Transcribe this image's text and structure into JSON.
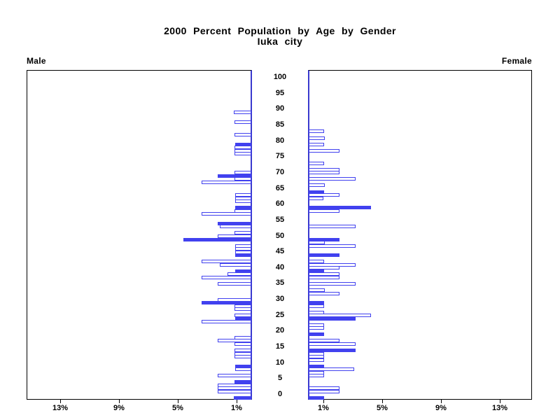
{
  "title": {
    "line1": "2000 Percent Population by Age by Gender",
    "line2": "Iuka city"
  },
  "axis_titles": {
    "male": "Male",
    "female": "Female"
  },
  "colors": {
    "bar_blue": "#4141ef",
    "spine_blue": "#3a3ace",
    "axis_black": "#000000",
    "background": "#ffffff"
  },
  "chart_data": {
    "type": "bar",
    "subtype": "population-pyramid",
    "title": "2000 Percent Population by Age by Gender",
    "subtitle": "Iuka city",
    "age_axis": {
      "label_ticks": [
        0,
        5,
        10,
        15,
        20,
        25,
        30,
        35,
        40,
        45,
        50,
        55,
        60,
        65,
        70,
        75,
        80,
        85,
        90,
        95,
        100
      ],
      "range": [
        0,
        100
      ]
    },
    "percent_axis": {
      "male_tick_labels": [
        "13%",
        "9%",
        "5%",
        "1%"
      ],
      "male_tick_values": [
        13,
        9,
        5,
        1
      ],
      "female_tick_labels": [
        "1%",
        "5%",
        "9%",
        "13%"
      ],
      "female_tick_values": [
        1,
        5,
        9,
        13
      ],
      "range": [
        0,
        15
      ],
      "unit": "percent of population"
    },
    "legend": {
      "solid_bar_meaning": "highlighted age bar (solid blue)",
      "outlined_bar_meaning": "age bar (white with blue outline)"
    },
    "series": [
      {
        "name": "Male",
        "bars": [
          {
            "age": 90,
            "pct": 1.2,
            "solid": false
          },
          {
            "age": 87,
            "pct": 1.15,
            "solid": false
          },
          {
            "age": 83,
            "pct": 1.15,
            "solid": false
          },
          {
            "age": 80,
            "pct": 1.1,
            "solid": true
          },
          {
            "age": 79,
            "pct": 1.15,
            "solid": false
          },
          {
            "age": 78,
            "pct": 1.15,
            "solid": false
          },
          {
            "age": 77,
            "pct": 1.15,
            "solid": false
          },
          {
            "age": 71,
            "pct": 1.15,
            "solid": false
          },
          {
            "age": 70,
            "pct": 2.3,
            "solid": true
          },
          {
            "age": 69,
            "pct": 1.15,
            "solid": false
          },
          {
            "age": 68,
            "pct": 3.4,
            "solid": false
          },
          {
            "age": 64,
            "pct": 1.1,
            "solid": false
          },
          {
            "age": 63,
            "pct": 1.1,
            "solid": false
          },
          {
            "age": 62,
            "pct": 1.1,
            "solid": false
          },
          {
            "age": 60,
            "pct": 1.1,
            "solid": true
          },
          {
            "age": 59,
            "pct": 1.15,
            "solid": false
          },
          {
            "age": 58,
            "pct": 3.4,
            "solid": false
          },
          {
            "age": 55,
            "pct": 2.3,
            "solid": true
          },
          {
            "age": 54,
            "pct": 2.15,
            "solid": false
          },
          {
            "age": 52,
            "pct": 1.15,
            "solid": false
          },
          {
            "age": 51,
            "pct": 2.3,
            "solid": false
          },
          {
            "age": 50,
            "pct": 4.6,
            "solid": true
          },
          {
            "age": 48,
            "pct": 1.1,
            "solid": false
          },
          {
            "age": 47,
            "pct": 1.1,
            "solid": false
          },
          {
            "age": 46,
            "pct": 1.1,
            "solid": false
          },
          {
            "age": 45,
            "pct": 1.1,
            "solid": true
          },
          {
            "age": 43,
            "pct": 3.4,
            "solid": false
          },
          {
            "age": 42,
            "pct": 2.15,
            "solid": false
          },
          {
            "age": 40,
            "pct": 1.1,
            "solid": true
          },
          {
            "age": 39,
            "pct": 1.6,
            "solid": false
          },
          {
            "age": 38,
            "pct": 3.4,
            "solid": false
          },
          {
            "age": 36,
            "pct": 2.3,
            "solid": false
          },
          {
            "age": 31,
            "pct": 2.3,
            "solid": false
          },
          {
            "age": 30,
            "pct": 3.4,
            "solid": true
          },
          {
            "age": 29,
            "pct": 1.15,
            "solid": false
          },
          {
            "age": 28,
            "pct": 1.15,
            "solid": false
          },
          {
            "age": 26,
            "pct": 1.15,
            "solid": false
          },
          {
            "age": 25,
            "pct": 1.1,
            "solid": true
          },
          {
            "age": 24,
            "pct": 3.4,
            "solid": false
          },
          {
            "age": 19,
            "pct": 1.15,
            "solid": false
          },
          {
            "age": 18,
            "pct": 2.3,
            "solid": false
          },
          {
            "age": 17,
            "pct": 1.15,
            "solid": false
          },
          {
            "age": 15,
            "pct": 1.15,
            "solid": false
          },
          {
            "age": 14,
            "pct": 1.15,
            "solid": false
          },
          {
            "age": 13,
            "pct": 1.15,
            "solid": false
          },
          {
            "age": 10,
            "pct": 1.1,
            "solid": true
          },
          {
            "age": 9,
            "pct": 1.1,
            "solid": false
          },
          {
            "age": 7,
            "pct": 2.3,
            "solid": false
          },
          {
            "age": 5,
            "pct": 1.15,
            "solid": true
          },
          {
            "age": 4,
            "pct": 2.3,
            "solid": false
          },
          {
            "age": 3,
            "pct": 2.3,
            "solid": false
          },
          {
            "age": 2,
            "pct": 2.3,
            "solid": false
          },
          {
            "age": 0,
            "pct": 1.2,
            "solid": true
          }
        ]
      },
      {
        "name": "Female",
        "bars": [
          {
            "age": 84,
            "pct": 1.05,
            "solid": false
          },
          {
            "age": 82,
            "pct": 1.1,
            "solid": false
          },
          {
            "age": 80,
            "pct": 1.05,
            "solid": false
          },
          {
            "age": 78,
            "pct": 2.1,
            "solid": false
          },
          {
            "age": 74,
            "pct": 1.05,
            "solid": false
          },
          {
            "age": 72,
            "pct": 2.1,
            "solid": false
          },
          {
            "age": 71,
            "pct": 2.1,
            "solid": false
          },
          {
            "age": 69,
            "pct": 3.2,
            "solid": false
          },
          {
            "age": 67,
            "pct": 1.1,
            "solid": false
          },
          {
            "age": 65,
            "pct": 1.05,
            "solid": true
          },
          {
            "age": 64,
            "pct": 2.1,
            "solid": false
          },
          {
            "age": 63,
            "pct": 1.0,
            "solid": false
          },
          {
            "age": 60,
            "pct": 4.25,
            "solid": true
          },
          {
            "age": 59,
            "pct": 2.1,
            "solid": false
          },
          {
            "age": 54,
            "pct": 3.2,
            "solid": false
          },
          {
            "age": 50,
            "pct": 2.1,
            "solid": true
          },
          {
            "age": 49,
            "pct": 1.1,
            "solid": false
          },
          {
            "age": 48,
            "pct": 3.2,
            "solid": false
          },
          {
            "age": 45,
            "pct": 2.1,
            "solid": true
          },
          {
            "age": 43,
            "pct": 1.05,
            "solid": false
          },
          {
            "age": 42,
            "pct": 3.2,
            "solid": false
          },
          {
            "age": 41,
            "pct": 2.1,
            "solid": false
          },
          {
            "age": 40,
            "pct": 1.05,
            "solid": true
          },
          {
            "age": 39,
            "pct": 2.1,
            "solid": false
          },
          {
            "age": 38,
            "pct": 2.1,
            "solid": false
          },
          {
            "age": 36,
            "pct": 3.2,
            "solid": false
          },
          {
            "age": 34,
            "pct": 1.1,
            "solid": false
          },
          {
            "age": 33,
            "pct": 2.1,
            "solid": false
          },
          {
            "age": 30,
            "pct": 1.05,
            "solid": true
          },
          {
            "age": 29,
            "pct": 1.05,
            "solid": false
          },
          {
            "age": 27,
            "pct": 1.05,
            "solid": false
          },
          {
            "age": 26,
            "pct": 4.25,
            "solid": false
          },
          {
            "age": 25,
            "pct": 3.2,
            "solid": true
          },
          {
            "age": 23,
            "pct": 1.05,
            "solid": false
          },
          {
            "age": 22,
            "pct": 1.05,
            "solid": false
          },
          {
            "age": 20,
            "pct": 1.05,
            "solid": true
          },
          {
            "age": 18,
            "pct": 2.1,
            "solid": false
          },
          {
            "age": 17,
            "pct": 3.2,
            "solid": false
          },
          {
            "age": 15,
            "pct": 3.2,
            "solid": true
          },
          {
            "age": 14,
            "pct": 1.05,
            "solid": false
          },
          {
            "age": 13,
            "pct": 1.05,
            "solid": false
          },
          {
            "age": 12,
            "pct": 1.05,
            "solid": false
          },
          {
            "age": 10,
            "pct": 1.05,
            "solid": true
          },
          {
            "age": 9,
            "pct": 3.1,
            "solid": false
          },
          {
            "age": 8,
            "pct": 1.05,
            "solid": false
          },
          {
            "age": 7,
            "pct": 1.05,
            "solid": false
          },
          {
            "age": 3,
            "pct": 2.1,
            "solid": false
          },
          {
            "age": 2,
            "pct": 2.1,
            "solid": false
          },
          {
            "age": 0,
            "pct": 1.05,
            "solid": true
          }
        ]
      }
    ]
  }
}
